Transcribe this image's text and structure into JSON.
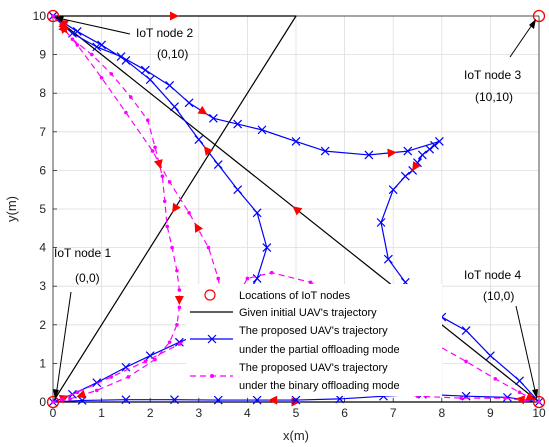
{
  "chart_data": {
    "type": "line",
    "xlabel": "x(m)",
    "ylabel": "y(m)",
    "xlim": [
      0,
      10
    ],
    "ylim": [
      0,
      10
    ],
    "xticks": [
      "0",
      "1",
      "2",
      "3",
      "4",
      "5",
      "6",
      "7",
      "8",
      "9",
      "10"
    ],
    "yticks": [
      "0",
      "1",
      "2",
      "3",
      "4",
      "5",
      "6",
      "7",
      "8",
      "9",
      "10"
    ],
    "grid": true,
    "legend_position": "bottom-center",
    "legend": [
      "Locations of IoT nodes",
      "Given initial UAV's trajectory",
      "The proposed UAV's trajectory",
      "under the partial offloading mode",
      "The proposed UAV's trajectory",
      "under the binary offloading mode"
    ],
    "iot_nodes": [
      {
        "label": "IoT node 1",
        "coord": "(0,0)",
        "x": 0,
        "y": 0
      },
      {
        "label": "IoT node 2",
        "coord": "(0,10)",
        "x": 0,
        "y": 10
      },
      {
        "label": "IoT node 3",
        "coord": "(10,10)",
        "x": 10,
        "y": 10
      },
      {
        "label": "IoT node 4",
        "coord": "(10,0)",
        "x": 10,
        "y": 0
      }
    ],
    "series": [
      {
        "style": "initial",
        "color": "#000000",
        "points": [
          [
            0,
            10
          ],
          [
            5,
            10
          ],
          [
            0,
            0
          ],
          [
            10,
            0
          ],
          [
            0,
            10
          ]
        ]
      },
      {
        "style": "partial",
        "color": "#0000ff",
        "marker": "x",
        "points": [
          [
            0,
            10
          ],
          [
            0.4,
            9.55
          ],
          [
            0.9,
            9.2
          ],
          [
            1.4,
            8.95
          ],
          [
            1.9,
            8.6
          ],
          [
            2.4,
            8.2
          ],
          [
            2.8,
            7.75
          ],
          [
            3.3,
            7.35
          ],
          [
            3.8,
            7.2
          ],
          [
            4.3,
            7.05
          ],
          [
            5.0,
            6.75
          ],
          [
            5.6,
            6.5
          ],
          [
            6.5,
            6.4
          ],
          [
            7.3,
            6.5
          ],
          [
            7.95,
            6.75
          ],
          [
            7.85,
            6.65
          ],
          [
            7.75,
            6.55
          ],
          [
            7.6,
            6.4
          ],
          [
            7.5,
            6.2
          ],
          [
            7.4,
            6.0
          ],
          [
            7.25,
            5.85
          ],
          [
            7.0,
            5.5
          ],
          [
            6.75,
            4.65
          ],
          [
            6.9,
            3.7
          ],
          [
            7.25,
            3.1
          ],
          [
            7.55,
            2.7
          ],
          [
            8.0,
            2.2
          ],
          [
            8.5,
            1.85
          ],
          [
            9.0,
            1.2
          ],
          [
            9.6,
            0.55
          ],
          [
            10,
            0
          ],
          [
            9.35,
            0.12
          ],
          [
            8.5,
            0.15
          ],
          [
            7.6,
            0.2
          ],
          [
            6.8,
            0.15
          ],
          [
            5.9,
            0.08
          ],
          [
            5.0,
            0.05
          ],
          [
            4.2,
            0.05
          ],
          [
            3.4,
            0.05
          ],
          [
            2.5,
            0.06
          ],
          [
            1.5,
            0.06
          ],
          [
            0.6,
            0.04
          ],
          [
            0,
            0
          ],
          [
            0.4,
            0.2
          ],
          [
            0.9,
            0.5
          ],
          [
            1.5,
            0.9
          ],
          [
            2.0,
            1.2
          ],
          [
            2.6,
            1.55
          ],
          [
            3.2,
            1.85
          ],
          [
            3.8,
            2.4
          ],
          [
            4.2,
            3.2
          ],
          [
            4.4,
            4.0
          ],
          [
            4.2,
            4.9
          ],
          [
            3.8,
            5.5
          ],
          [
            3.4,
            6.15
          ],
          [
            3.0,
            6.8
          ],
          [
            2.5,
            7.65
          ],
          [
            2.0,
            8.35
          ],
          [
            1.5,
            8.85
          ],
          [
            1.0,
            9.25
          ],
          [
            0.5,
            9.6
          ],
          [
            0,
            10
          ]
        ]
      },
      {
        "style": "binary",
        "color": "#ff00ff",
        "marker": ".",
        "points": [
          [
            0,
            10
          ],
          [
            0.4,
            9.4
          ],
          [
            0.8,
            9.0
          ],
          [
            1.2,
            8.5
          ],
          [
            1.6,
            7.9
          ],
          [
            1.95,
            7.3
          ],
          [
            2.1,
            6.6
          ],
          [
            2.25,
            5.85
          ],
          [
            2.3,
            5.2
          ],
          [
            2.35,
            4.55
          ],
          [
            2.45,
            4.0
          ],
          [
            2.55,
            3.4
          ],
          [
            2.6,
            2.9
          ],
          [
            2.6,
            2.45
          ],
          [
            2.55,
            2.0
          ],
          [
            2.4,
            1.55
          ],
          [
            2.1,
            1.1
          ],
          [
            1.55,
            0.65
          ],
          [
            0.9,
            0.3
          ],
          [
            0.35,
            0.08
          ],
          [
            0,
            0
          ],
          [
            0.5,
            0.25
          ],
          [
            1.2,
            0.65
          ],
          [
            1.9,
            1.05
          ],
          [
            2.6,
            1.5
          ],
          [
            3.1,
            1.9
          ],
          [
            3.5,
            2.3
          ],
          [
            3.8,
            2.75
          ],
          [
            4.0,
            3.2
          ],
          [
            4.5,
            3.35
          ],
          [
            5.3,
            3.1
          ],
          [
            6.2,
            2.6
          ],
          [
            7.0,
            2.1
          ],
          [
            7.8,
            1.55
          ],
          [
            8.5,
            1.05
          ],
          [
            9.1,
            0.6
          ],
          [
            9.6,
            0.25
          ],
          [
            10,
            0
          ],
          [
            9.3,
            0.1
          ],
          [
            8.4,
            0.1
          ],
          [
            7.5,
            0.15
          ],
          [
            6.6,
            0.35
          ],
          [
            5.8,
            0.55
          ],
          [
            5.0,
            0.8
          ],
          [
            4.3,
            1.25
          ],
          [
            3.8,
            1.85
          ],
          [
            3.5,
            2.5
          ],
          [
            3.4,
            3.2
          ],
          [
            3.2,
            4.0
          ],
          [
            2.8,
            4.9
          ],
          [
            2.4,
            5.7
          ],
          [
            2.05,
            6.5
          ],
          [
            1.5,
            7.5
          ],
          [
            1.0,
            8.4
          ],
          [
            0.5,
            9.25
          ],
          [
            0,
            10
          ]
        ]
      }
    ]
  }
}
